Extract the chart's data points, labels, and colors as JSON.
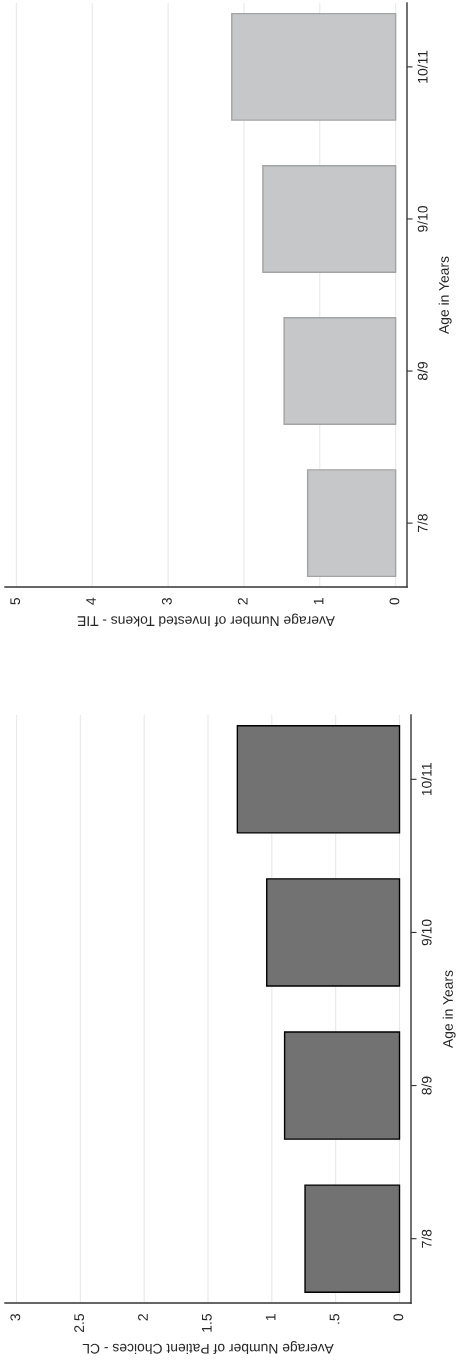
{
  "chart_data": [
    {
      "type": "bar",
      "orientation": "horizontal",
      "xlabel": "Average Number of Invested Tokens - TIE",
      "ylabel": "Age in Years",
      "categories": [
        "10/11",
        "9/10",
        "8/9",
        "7/8"
      ],
      "values": [
        2.16,
        1.75,
        1.47,
        1.16
      ],
      "color": "#c6c7c8",
      "xlim": [
        5.15,
        -0.15
      ],
      "xticks": [
        0,
        1,
        2,
        3,
        4,
        5
      ],
      "grid": "x"
    },
    {
      "type": "bar",
      "orientation": "horizontal",
      "xlabel": "Average Number of Patient Choices - CL",
      "ylabel": "Age in Years",
      "categories": [
        "10/11",
        "9/10",
        "8/9",
        "7/8"
      ],
      "values": [
        1.27,
        1.04,
        0.9,
        0.74
      ],
      "color": "#727272",
      "xlim": [
        3.09,
        -0.09
      ],
      "xticks": [
        0,
        {
          "value": 0.5,
          "label": ".5"
        },
        1,
        {
          "value": 1.5,
          "label": "1.5"
        },
        2,
        {
          "value": 2.5,
          "label": "2.5"
        },
        3
      ],
      "grid": "x"
    }
  ]
}
